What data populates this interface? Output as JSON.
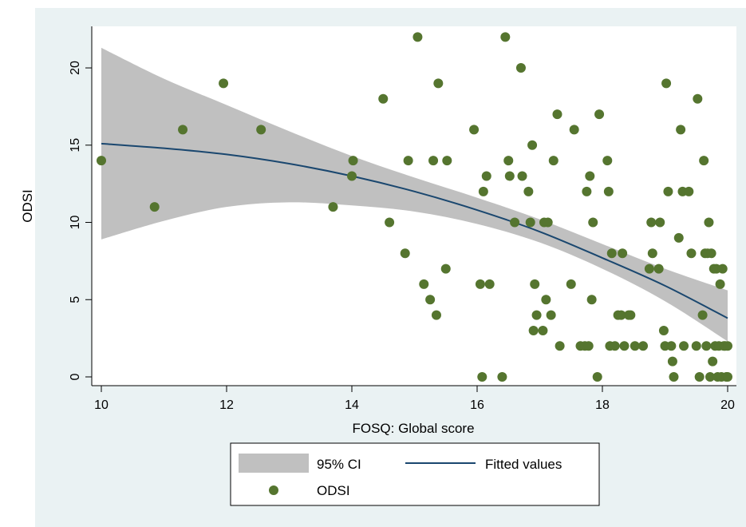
{
  "chart_data": {
    "type": "scatter",
    "xlabel": "FOSQ: Global score",
    "ylabel": "ODSI",
    "xlim": [
      10,
      20
    ],
    "ylim": [
      0,
      23
    ],
    "xticks": [
      10,
      12,
      14,
      16,
      18,
      20
    ],
    "yticks": [
      0,
      5,
      10,
      15,
      20
    ],
    "grid": false,
    "legend_position": "bottom",
    "colors": {
      "background": "#eaf2f3",
      "plot_area": "#ffffff",
      "ci_band": "#c0c0c0",
      "fit_line": "#1a476f",
      "points": "#55752f"
    },
    "legend": [
      {
        "label": "95% CI",
        "kind": "band"
      },
      {
        "label": "Fitted values",
        "kind": "line"
      },
      {
        "label": "ODSI",
        "kind": "marker"
      }
    ],
    "series": [
      {
        "name": "ODSI",
        "kind": "scatter",
        "points": [
          [
            10.0,
            14
          ],
          [
            10.85,
            11
          ],
          [
            11.3,
            16
          ],
          [
            11.95,
            19
          ],
          [
            12.55,
            16
          ],
          [
            13.7,
            11
          ],
          [
            14.0,
            13
          ],
          [
            14.02,
            14
          ],
          [
            14.5,
            18
          ],
          [
            14.6,
            10
          ],
          [
            14.85,
            8
          ],
          [
            14.9,
            14
          ],
          [
            15.05,
            22
          ],
          [
            15.15,
            6
          ],
          [
            15.25,
            5
          ],
          [
            15.3,
            14
          ],
          [
            15.35,
            4
          ],
          [
            15.38,
            19
          ],
          [
            15.5,
            7
          ],
          [
            15.52,
            14
          ],
          [
            15.95,
            16
          ],
          [
            16.05,
            6
          ],
          [
            16.08,
            0
          ],
          [
            16.1,
            12
          ],
          [
            16.15,
            13
          ],
          [
            16.2,
            6
          ],
          [
            16.4,
            0
          ],
          [
            16.45,
            22
          ],
          [
            16.5,
            14
          ],
          [
            16.52,
            13
          ],
          [
            16.6,
            10
          ],
          [
            16.7,
            20
          ],
          [
            16.72,
            13
          ],
          [
            16.82,
            12
          ],
          [
            16.85,
            10
          ],
          [
            16.88,
            15
          ],
          [
            16.9,
            3
          ],
          [
            16.92,
            6
          ],
          [
            16.95,
            4
          ],
          [
            17.05,
            3
          ],
          [
            17.07,
            10
          ],
          [
            17.1,
            5
          ],
          [
            17.13,
            10
          ],
          [
            17.18,
            4
          ],
          [
            17.22,
            14
          ],
          [
            17.28,
            17
          ],
          [
            17.32,
            2
          ],
          [
            17.5,
            6
          ],
          [
            17.55,
            16
          ],
          [
            17.65,
            2
          ],
          [
            17.72,
            2
          ],
          [
            17.75,
            12
          ],
          [
            17.78,
            2
          ],
          [
            17.8,
            13
          ],
          [
            17.83,
            5
          ],
          [
            17.85,
            10
          ],
          [
            17.92,
            0
          ],
          [
            17.95,
            17
          ],
          [
            18.08,
            14
          ],
          [
            18.1,
            12
          ],
          [
            18.12,
            2
          ],
          [
            18.15,
            8
          ],
          [
            18.2,
            2
          ],
          [
            18.25,
            4
          ],
          [
            18.3,
            4
          ],
          [
            18.32,
            8
          ],
          [
            18.35,
            2
          ],
          [
            18.42,
            4
          ],
          [
            18.45,
            4
          ],
          [
            18.52,
            2
          ],
          [
            18.65,
            2
          ],
          [
            18.75,
            7
          ],
          [
            18.78,
            10
          ],
          [
            18.8,
            8
          ],
          [
            18.9,
            7
          ],
          [
            18.92,
            10
          ],
          [
            18.98,
            3
          ],
          [
            19.0,
            2
          ],
          [
            19.02,
            19
          ],
          [
            19.05,
            12
          ],
          [
            19.1,
            2
          ],
          [
            19.12,
            1
          ],
          [
            19.14,
            0
          ],
          [
            19.22,
            9
          ],
          [
            19.25,
            16
          ],
          [
            19.28,
            12
          ],
          [
            19.3,
            2
          ],
          [
            19.38,
            12
          ],
          [
            19.42,
            8
          ],
          [
            19.5,
            2
          ],
          [
            19.52,
            18
          ],
          [
            19.55,
            0
          ],
          [
            19.6,
            4
          ],
          [
            19.62,
            14
          ],
          [
            19.64,
            8
          ],
          [
            19.66,
            2
          ],
          [
            19.68,
            8
          ],
          [
            19.7,
            10
          ],
          [
            19.72,
            0
          ],
          [
            19.74,
            8
          ],
          [
            19.76,
            1
          ],
          [
            19.78,
            7
          ],
          [
            19.8,
            2
          ],
          [
            19.82,
            7
          ],
          [
            19.84,
            0
          ],
          [
            19.86,
            2
          ],
          [
            19.88,
            6
          ],
          [
            19.9,
            0
          ],
          [
            19.92,
            7
          ],
          [
            19.94,
            2
          ],
          [
            19.96,
            2
          ],
          [
            19.98,
            0
          ],
          [
            20.0,
            2
          ],
          [
            20.0,
            0
          ]
        ]
      },
      {
        "name": "Fitted values",
        "kind": "line",
        "points": [
          [
            10.0,
            15.1
          ],
          [
            11.0,
            14.8
          ],
          [
            12.0,
            14.4
          ],
          [
            13.0,
            13.8
          ],
          [
            14.0,
            13.0
          ],
          [
            15.0,
            12.0
          ],
          [
            16.0,
            10.8
          ],
          [
            17.0,
            9.4
          ],
          [
            18.0,
            7.7
          ],
          [
            19.0,
            5.9
          ],
          [
            20.0,
            3.8
          ]
        ]
      },
      {
        "name": "95% CI",
        "kind": "band",
        "upper": [
          [
            10.0,
            21.3
          ],
          [
            11.0,
            19.3
          ],
          [
            12.0,
            17.6
          ],
          [
            13.0,
            15.9
          ],
          [
            14.0,
            14.3
          ],
          [
            15.0,
            12.9
          ],
          [
            16.0,
            11.6
          ],
          [
            17.0,
            10.2
          ],
          [
            18.0,
            8.6
          ],
          [
            19.0,
            7.0
          ],
          [
            20.0,
            5.6
          ]
        ],
        "lower": [
          [
            10.0,
            8.9
          ],
          [
            11.0,
            10.1
          ],
          [
            12.0,
            11.0
          ],
          [
            13.0,
            11.3
          ],
          [
            14.0,
            11.1
          ],
          [
            15.0,
            10.7
          ],
          [
            16.0,
            9.9
          ],
          [
            17.0,
            8.7
          ],
          [
            18.0,
            7.0
          ],
          [
            19.0,
            4.9
          ],
          [
            20.0,
            2.3
          ]
        ]
      }
    ]
  }
}
